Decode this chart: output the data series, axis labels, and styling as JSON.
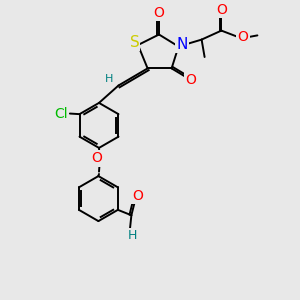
{
  "background_color": "#e8e8e8",
  "bond_color": "#000000",
  "bond_width": 1.4,
  "atom_colors": {
    "O": "#ff0000",
    "N": "#0000ff",
    "S": "#cccc00",
    "Cl": "#00bb00",
    "C": "#000000",
    "H": "#008080"
  },
  "font_size": 9,
  "fig_width": 3.0,
  "fig_height": 3.0,
  "dpi": 100,
  "xlim": [
    0,
    10
  ],
  "ylim": [
    0,
    10
  ]
}
